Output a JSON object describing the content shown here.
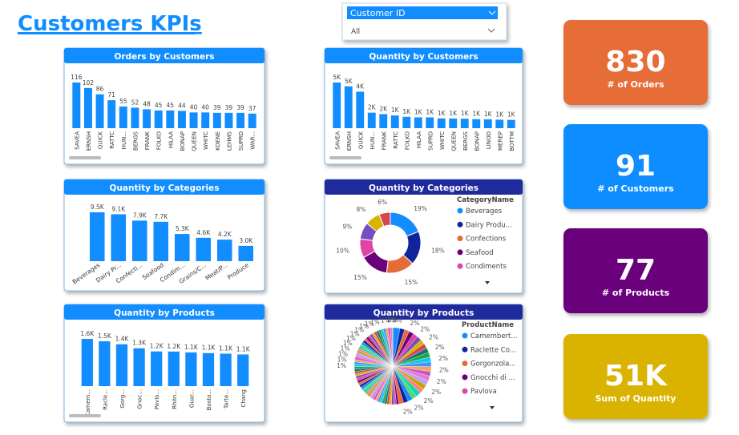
{
  "title": "Customers KPIs",
  "slicer": {
    "label": "Customer ID",
    "selection": "All"
  },
  "kpis": [
    {
      "value": "830",
      "label": "# of Orders",
      "color": "#E66C37"
    },
    {
      "value": "91",
      "label": "# of Customers",
      "color": "#118DFF"
    },
    {
      "value": "77",
      "label": "# of Products",
      "color": "#6B007B"
    },
    {
      "value": "51K",
      "label": "Sum of Quantity",
      "color": "#D9B300"
    }
  ],
  "chart_data": [
    {
      "type": "bar",
      "title": "Orders by Customers",
      "color": "#118DFF",
      "categories": [
        "SAVEA",
        "ERNSH",
        "QUICK",
        "RATTC",
        "HUN...",
        "BERGS",
        "FRANK",
        "FOLKO",
        "HILAA",
        "BONAP",
        "QUEEN",
        "WHITC",
        "KOENE",
        "LEHMS",
        "SUPRD",
        "WAR..."
      ],
      "values": [
        116,
        102,
        86,
        71,
        55,
        52,
        48,
        45,
        45,
        44,
        40,
        40,
        39,
        39,
        39,
        37
      ]
    },
    {
      "type": "bar",
      "title": "Quantity by Customers",
      "color": "#118DFF",
      "categories": [
        "SAVEA",
        "ERNSH",
        "QUICK",
        "HUN...",
        "FRANK",
        "RATTC",
        "FOLKO",
        "HILAA",
        "SUPRD",
        "WHITC",
        "QUEEN",
        "BERGS",
        "BONAP",
        "LINOD",
        "MEREP",
        "BOTTM"
      ],
      "values": [
        4958,
        4543,
        3961,
        1684,
        1525,
        1383,
        1234,
        1178,
        1170,
        1063,
        1050,
        1026,
        980,
        964,
        920,
        898
      ],
      "value_labels": [
        "5K",
        "5K",
        "4K",
        "2K",
        "2K",
        "1K",
        "1K",
        "1K",
        "1K",
        "1K",
        "1K",
        "1K",
        "1K",
        "1K",
        "1K",
        "1K"
      ]
    },
    {
      "type": "bar",
      "title": "Quantity by Categories",
      "color": "#118DFF",
      "categories": [
        "Beverages",
        "Dairy Pr...",
        "Confecti...",
        "Seafood",
        "Condim...",
        "Grains/C...",
        "Meat/P...",
        "Produce"
      ],
      "values": [
        9532,
        9149,
        7906,
        7681,
        5298,
        4562,
        4199,
        2990
      ],
      "value_labels": [
        "9.5K",
        "9.1K",
        "7.9K",
        "7.7K",
        "5.3K",
        "4.6K",
        "4.2K",
        "3.0K"
      ]
    },
    {
      "type": "donut",
      "title": "Quantity by Categories",
      "legend_title": "CategoryName",
      "categories": [
        "Beverages",
        "Dairy Produ...",
        "Confections",
        "Seafood",
        "Condiments",
        null,
        null,
        null
      ],
      "values": [
        19,
        18,
        15,
        15,
        10,
        9,
        8,
        6
      ],
      "value_labels": [
        "19%",
        "18%",
        "15%",
        "15%",
        "10%",
        "9%",
        "8%",
        "6%"
      ],
      "colors": [
        "#118DFF",
        "#12239E",
        "#E66C37",
        "#6B007B",
        "#E044A7",
        "#744EC2",
        "#D9B300",
        "#D64550"
      ]
    },
    {
      "type": "bar",
      "title": "Quantity by Products",
      "color": "#118DFF",
      "categories": [
        "Camem...",
        "Racle...",
        "Gorg...",
        "Gnoc...",
        "Pavlo...",
        "Rhön...",
        "Guar...",
        "Bosto...",
        "Tarte...",
        "Chang"
      ],
      "values": [
        1577,
        1496,
        1397,
        1263,
        1158,
        1155,
        1125,
        1103,
        1083,
        1057
      ],
      "value_labels": [
        "1.6K",
        "1.5K",
        "1.4K",
        "1.3K",
        "1.2K",
        "1.2K",
        "1.1K",
        "1.1K",
        "1.1K",
        "1.1K"
      ]
    },
    {
      "type": "pie",
      "title": "Quantity by Products",
      "legend_title": "ProductName",
      "categories": [
        "Camembert...",
        "Raclette Co...",
        "Gorgonzola...",
        "Gnocchi di ...",
        "Pavlova",
        null,
        null,
        null,
        null,
        null,
        null,
        null,
        null,
        null,
        null,
        null,
        null,
        null,
        null,
        null,
        null,
        null,
        null,
        null,
        null,
        null,
        null,
        null,
        null,
        null,
        null,
        null,
        null,
        null,
        null,
        null,
        null,
        null,
        null,
        null,
        null,
        null,
        null,
        null,
        null,
        null,
        null,
        null,
        null,
        null,
        null,
        null,
        null,
        null,
        null,
        null,
        null,
        null,
        null,
        null,
        null,
        null,
        null,
        null,
        null,
        null,
        null,
        null,
        null,
        null,
        null,
        null,
        null,
        null,
        null,
        null,
        null
      ],
      "values": [
        3,
        2,
        2,
        2,
        2,
        2,
        2,
        2,
        2,
        2,
        2,
        2,
        2,
        2,
        2,
        2,
        2,
        2,
        2,
        2,
        2,
        2,
        2,
        1,
        1,
        1,
        1,
        1,
        1,
        1,
        1,
        1,
        1,
        1,
        1,
        1,
        1,
        1,
        1,
        1,
        1,
        1,
        1,
        1,
        1,
        1,
        1,
        1,
        1,
        1,
        1,
        1,
        1,
        1,
        1,
        1,
        1,
        1,
        1,
        1,
        1,
        1,
        1,
        1,
        1,
        1,
        1,
        1,
        1,
        1,
        1,
        1,
        1,
        1,
        1,
        0,
        0
      ],
      "value_labels": [
        "3%",
        null,
        "2%",
        null,
        "2%",
        null,
        "2%",
        null,
        "2%",
        null,
        "2%",
        null,
        "2%",
        null,
        "2%",
        null,
        "2%",
        null,
        "2%",
        null,
        "2%",
        null,
        "2%",
        null,
        null,
        null,
        null,
        null,
        null,
        null,
        null,
        null,
        null,
        null,
        null,
        null,
        null,
        null,
        null,
        null,
        null,
        null,
        null,
        null,
        null,
        null,
        null,
        null,
        null,
        null,
        "1%",
        null,
        "1%",
        null,
        "1%",
        null,
        "1%",
        null,
        "1%",
        null,
        "1%",
        null,
        "1%",
        null,
        "1%",
        null,
        "1%",
        null,
        "1%",
        null,
        "1%",
        null,
        "1%",
        null,
        "1%",
        null,
        "0%"
      ],
      "colors": [
        "#118DFF",
        "#12239E",
        "#E66C37",
        "#6B007B",
        "#E044A7",
        "#744EC2",
        "#D9B300",
        "#D64550",
        "#197278",
        "#1AAB40",
        "#15C6F4",
        "#4092FF",
        "#FFA058",
        "#BE5DC9",
        "#F472D0",
        "#B5A1FF",
        "#C4A200",
        "#FF8080",
        "#00DBBC",
        "#5BD667"
      ]
    }
  ]
}
